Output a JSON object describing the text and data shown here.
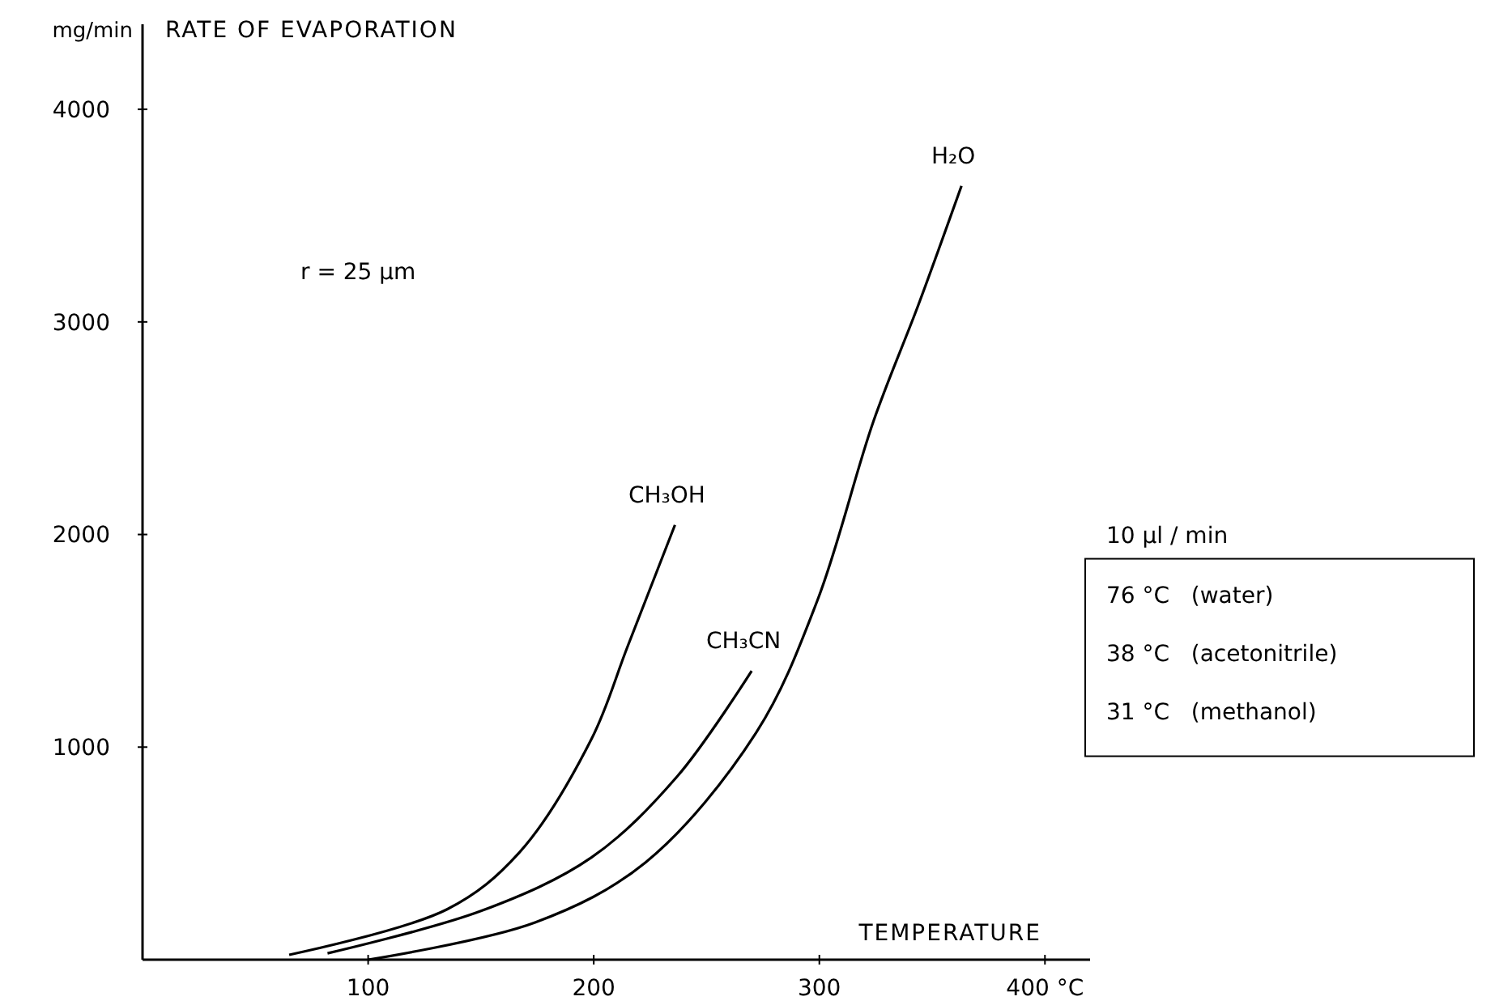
{
  "chart_data": {
    "type": "line",
    "title": "RATE OF EVAPORATION",
    "xlabel": "TEMPERATURE",
    "ylabel": "mg/min",
    "xlim": [
      0,
      420
    ],
    "ylim": [
      0,
      4400
    ],
    "xticks": [
      100,
      200,
      300,
      {
        "value": 400,
        "label": "400 °C"
      }
    ],
    "yticks": [
      1000,
      2000,
      3000,
      4000
    ],
    "grid": false,
    "marker": "none",
    "line_style": "solid",
    "series": [
      {
        "name": "CH₃OH",
        "color": "#000000",
        "x": [
          65,
          135,
          167,
          199,
          215,
          236
        ],
        "values": [
          23,
          237,
          504,
          1038,
          1473,
          2045
        ]
      },
      {
        "name": "CH₃CN",
        "color": "#000000",
        "x": [
          82,
          150,
          199,
          237,
          270
        ],
        "values": [
          30,
          229,
          481,
          862,
          1358
        ]
      },
      {
        "name": "H₂O",
        "color": "#000000",
        "x": [
          100,
          174,
          223,
          272,
          299,
          324,
          344,
          363
        ],
        "values": [
          0,
          175,
          458,
          1068,
          1686,
          2533,
          3083,
          3640
        ]
      }
    ],
    "annotations": [
      "r = 25 µm",
      "10 µl / min",
      "76 °C   (water)",
      "38 °C   (acetonitrile)",
      "31 °C   (methanol)"
    ]
  }
}
